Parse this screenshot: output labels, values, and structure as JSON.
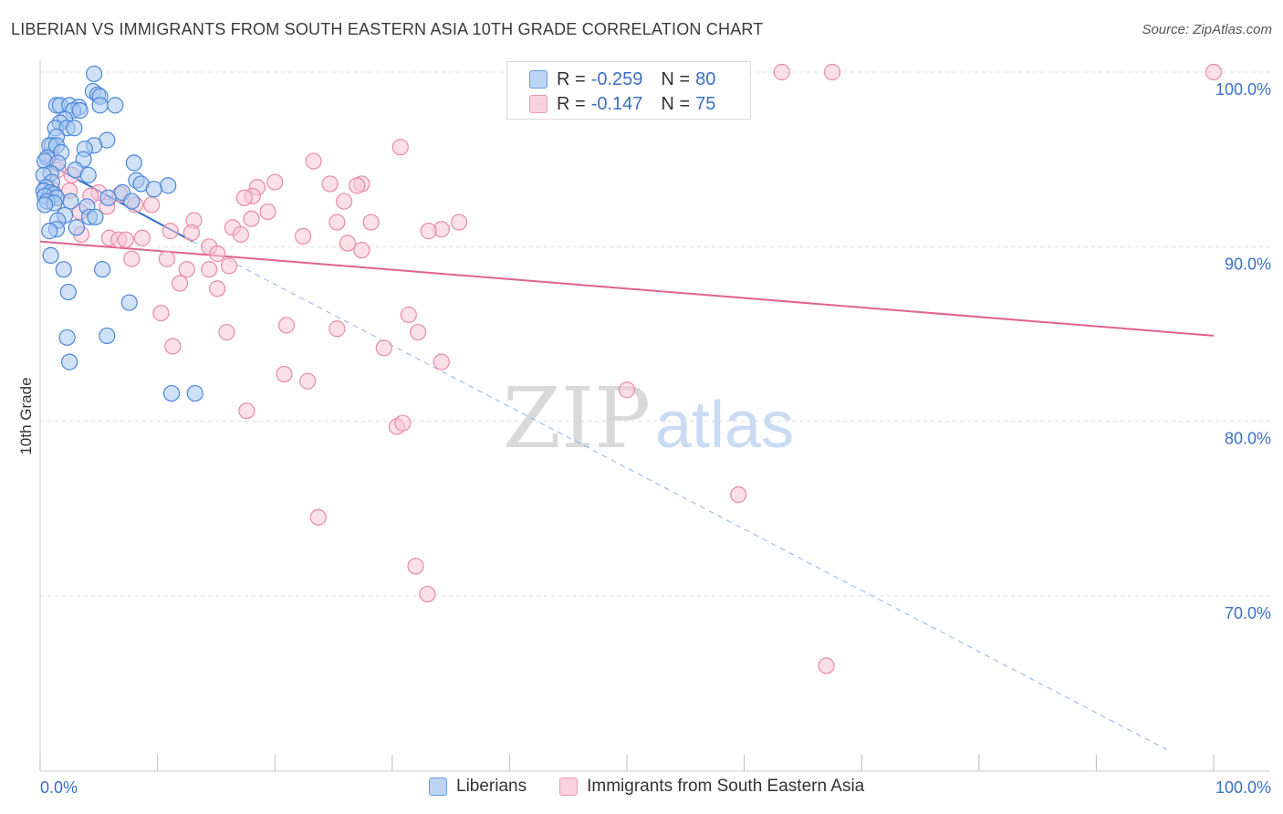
{
  "title": "LIBERIAN VS IMMIGRANTS FROM SOUTH EASTERN ASIA 10TH GRADE CORRELATION CHART",
  "source": "Source: ZipAtlas.com",
  "watermark": {
    "zip": "ZIP",
    "atlas": "atlas"
  },
  "legend": {
    "series1": {
      "r_label": "R =",
      "r_value": "-0.259",
      "n_label": "N =",
      "n_value": "80"
    },
    "series2": {
      "r_label": "R =",
      "r_value": "-0.147",
      "n_label": "N =",
      "n_value": "75"
    }
  },
  "colors": {
    "blue_fill": "#a9c8f0",
    "blue_stroke": "#4a86d8",
    "blue_line": "#2f6fd0",
    "pink_fill": "#f7c6d5",
    "pink_stroke": "#e98aa8",
    "pink_line": "#e0628f",
    "axis_text": "#3a6fc4",
    "grid": "#dddddd"
  },
  "chart_data": {
    "type": "scatter",
    "title": "LIBERIAN VS IMMIGRANTS FROM SOUTH EASTERN ASIA 10TH GRADE CORRELATION CHART",
    "xlabel": "",
    "ylabel": "10th Grade",
    "xlim": [
      0,
      100
    ],
    "ylim": [
      60,
      102
    ],
    "x_tick_labels": [
      "0.0%",
      "100.0%"
    ],
    "y_ticks": [
      100,
      90,
      80,
      70
    ],
    "y_tick_labels": [
      "100.0%",
      "90.0%",
      "80.0%",
      "70.0%"
    ],
    "grid": true,
    "series": [
      {
        "name": "Liberians",
        "color": "#4a86d8",
        "r": -0.259,
        "n": 80,
        "trend": {
          "x": [
            0,
            13
          ],
          "y": [
            95.0,
            90.3
          ],
          "extended_dashed_to": [
            96,
            61.2
          ]
        },
        "points": [
          [
            4.6,
            99.9
          ],
          [
            4.5,
            98.9
          ],
          [
            4.9,
            98.7
          ],
          [
            5.1,
            98.6
          ],
          [
            1.4,
            98.1
          ],
          [
            1.7,
            98.1
          ],
          [
            2.5,
            98.1
          ],
          [
            3.3,
            98.0
          ],
          [
            5.1,
            98.1
          ],
          [
            6.4,
            98.1
          ],
          [
            2.8,
            97.8
          ],
          [
            3.4,
            97.8
          ],
          [
            2.1,
            97.3
          ],
          [
            1.7,
            97.1
          ],
          [
            1.3,
            96.8
          ],
          [
            2.3,
            96.8
          ],
          [
            2.9,
            96.8
          ],
          [
            1.4,
            96.3
          ],
          [
            5.7,
            96.1
          ],
          [
            1.0,
            95.8
          ],
          [
            0.8,
            95.8
          ],
          [
            1.4,
            95.8
          ],
          [
            4.6,
            95.8
          ],
          [
            3.8,
            95.6
          ],
          [
            1.8,
            95.4
          ],
          [
            0.6,
            95.1
          ],
          [
            3.7,
            95.0
          ],
          [
            0.4,
            94.9
          ],
          [
            8.0,
            94.8
          ],
          [
            1.5,
            94.8
          ],
          [
            3.0,
            94.4
          ],
          [
            0.9,
            94.2
          ],
          [
            0.3,
            94.1
          ],
          [
            4.1,
            94.1
          ],
          [
            8.2,
            93.8
          ],
          [
            1.0,
            93.7
          ],
          [
            8.6,
            93.6
          ],
          [
            10.9,
            93.5
          ],
          [
            0.5,
            93.4
          ],
          [
            0.3,
            93.2
          ],
          [
            0.9,
            93.1
          ],
          [
            7.0,
            93.1
          ],
          [
            1.2,
            93.0
          ],
          [
            9.7,
            93.3
          ],
          [
            0.4,
            92.9
          ],
          [
            1.4,
            92.8
          ],
          [
            5.8,
            92.8
          ],
          [
            0.6,
            92.6
          ],
          [
            2.6,
            92.6
          ],
          [
            7.8,
            92.6
          ],
          [
            1.2,
            92.5
          ],
          [
            0.4,
            92.4
          ],
          [
            4.0,
            92.3
          ],
          [
            2.1,
            91.8
          ],
          [
            4.2,
            91.7
          ],
          [
            4.7,
            91.7
          ],
          [
            1.5,
            91.5
          ],
          [
            3.1,
            91.1
          ],
          [
            1.4,
            91.0
          ],
          [
            0.8,
            90.9
          ],
          [
            0.9,
            89.5
          ],
          [
            2.0,
            88.7
          ],
          [
            5.3,
            88.7
          ],
          [
            2.4,
            87.4
          ],
          [
            7.6,
            86.8
          ],
          [
            2.3,
            84.8
          ],
          [
            5.7,
            84.9
          ],
          [
            2.5,
            83.4
          ],
          [
            11.2,
            81.6
          ],
          [
            13.2,
            81.6
          ]
        ]
      },
      {
        "name": "Immigrants from South Eastern Asia",
        "color": "#e98aa8",
        "r": -0.147,
        "n": 75,
        "trend": {
          "x": [
            0,
            100
          ],
          "y": [
            90.3,
            84.9
          ]
        },
        "points": [
          [
            63.2,
            100.0
          ],
          [
            67.5,
            100.0
          ],
          [
            100.0,
            100.0
          ],
          [
            30.7,
            95.7
          ],
          [
            23.3,
            94.9
          ],
          [
            0.9,
            95.3
          ],
          [
            1.5,
            94.4
          ],
          [
            2.7,
            94.1
          ],
          [
            20.0,
            93.7
          ],
          [
            24.7,
            93.6
          ],
          [
            27.4,
            93.6
          ],
          [
            27.0,
            93.5
          ],
          [
            18.5,
            93.4
          ],
          [
            1.0,
            93.3
          ],
          [
            2.5,
            93.2
          ],
          [
            5.0,
            93.1
          ],
          [
            6.8,
            93.0
          ],
          [
            18.1,
            92.9
          ],
          [
            4.3,
            92.9
          ],
          [
            17.4,
            92.8
          ],
          [
            25.9,
            92.6
          ],
          [
            8.1,
            92.4
          ],
          [
            9.5,
            92.4
          ],
          [
            5.7,
            92.3
          ],
          [
            19.4,
            92.0
          ],
          [
            3.4,
            92.0
          ],
          [
            18.0,
            91.6
          ],
          [
            13.1,
            91.5
          ],
          [
            25.3,
            91.4
          ],
          [
            28.2,
            91.4
          ],
          [
            35.7,
            91.4
          ],
          [
            16.4,
            91.1
          ],
          [
            11.1,
            90.9
          ],
          [
            34.2,
            91.0
          ],
          [
            12.9,
            90.8
          ],
          [
            3.5,
            90.7
          ],
          [
            33.1,
            90.9
          ],
          [
            17.1,
            90.7
          ],
          [
            22.4,
            90.6
          ],
          [
            5.9,
            90.5
          ],
          [
            6.7,
            90.4
          ],
          [
            7.3,
            90.4
          ],
          [
            8.7,
            90.5
          ],
          [
            26.2,
            90.2
          ],
          [
            14.4,
            90.0
          ],
          [
            15.1,
            89.6
          ],
          [
            27.4,
            89.8
          ],
          [
            7.8,
            89.3
          ],
          [
            10.8,
            89.3
          ],
          [
            16.1,
            88.9
          ],
          [
            12.5,
            88.7
          ],
          [
            14.4,
            88.7
          ],
          [
            11.9,
            87.9
          ],
          [
            15.1,
            87.6
          ],
          [
            10.3,
            86.2
          ],
          [
            31.4,
            86.1
          ],
          [
            21.0,
            85.5
          ],
          [
            25.3,
            85.3
          ],
          [
            32.2,
            85.1
          ],
          [
            15.9,
            85.1
          ],
          [
            11.3,
            84.3
          ],
          [
            29.3,
            84.2
          ],
          [
            34.2,
            83.4
          ],
          [
            20.8,
            82.7
          ],
          [
            22.8,
            82.3
          ],
          [
            50.0,
            81.8
          ],
          [
            17.6,
            80.6
          ],
          [
            30.4,
            79.7
          ],
          [
            30.9,
            79.9
          ],
          [
            59.5,
            75.8
          ],
          [
            23.7,
            74.5
          ],
          [
            32.0,
            71.7
          ],
          [
            33.0,
            70.1
          ],
          [
            67.0,
            66.0
          ]
        ]
      }
    ]
  },
  "bottom_legend": {
    "item1": "Liberians",
    "item2": "Immigrants from South Eastern Asia"
  }
}
